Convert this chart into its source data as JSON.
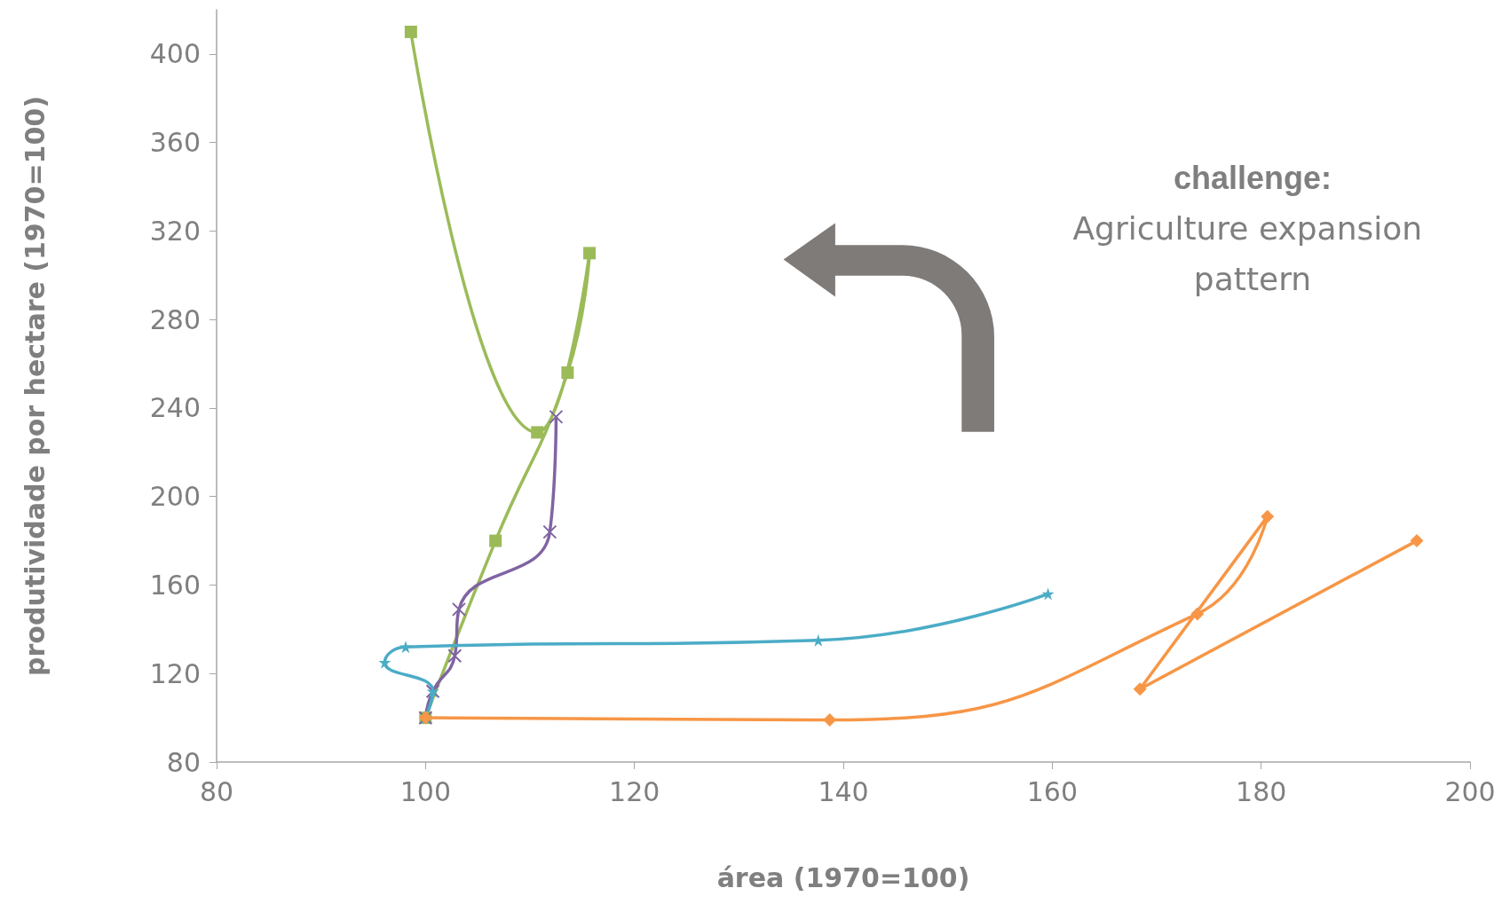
{
  "chart_data": {
    "type": "line",
    "xlabel": "área (1970=100)",
    "ylabel": "produtividade por hectare (1970=100)",
    "xlim": [
      80,
      200
    ],
    "xticks": [
      80,
      100,
      120,
      140,
      160,
      180,
      200
    ],
    "ylim": [
      80,
      420
    ],
    "yticks": [
      80,
      120,
      160,
      200,
      240,
      280,
      320,
      360,
      400
    ],
    "grid": false,
    "line_style": "solid",
    "annotations": [
      "challenge: Agriculture expansion pattern"
    ],
    "series": [
      {
        "color": "#9bbb59",
        "marker": "square",
        "x": [
          100,
          106.7,
          113.6,
          115.7,
          110.7,
          98.6
        ],
        "values": [
          100,
          180,
          256,
          310,
          229,
          410
        ]
      },
      {
        "color": "#8064a2",
        "marker": "cross",
        "x": [
          100,
          100.7,
          102.8,
          103.2,
          111.9,
          112.5
        ],
        "values": [
          100,
          112,
          128,
          149,
          184,
          236
        ]
      },
      {
        "color": "#4bacc6",
        "marker": "star",
        "x": [
          100,
          100.7,
          96.1,
          98.1,
          137.6,
          159.6
        ],
        "values": [
          100,
          112,
          125,
          132,
          135,
          156
        ]
      },
      {
        "color": "#f79646",
        "marker": "diamond",
        "x": [
          100,
          138.7,
          173.9,
          180.6,
          168.4,
          194.9
        ],
        "values": [
          100,
          99,
          147,
          191,
          113,
          180
        ]
      }
    ]
  }
}
